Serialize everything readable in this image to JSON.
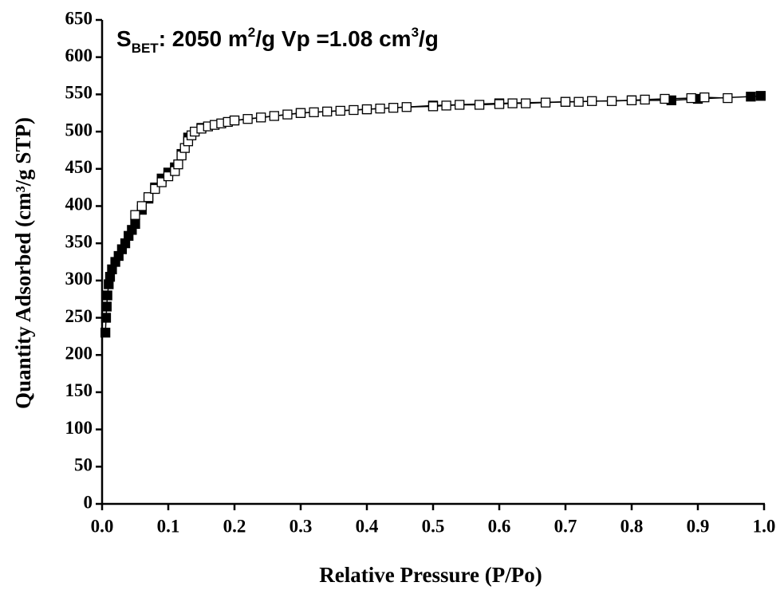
{
  "chart_data": {
    "type": "scatter",
    "annotation": [
      "S",
      "BET",
      ": 2050 m",
      "2",
      "/g  Vp =1.08 cm",
      "3",
      "/g"
    ],
    "x_label": "Relative Pressure (P/Po)",
    "y_label": "Quantity Adsorbed (cm³/g STP)",
    "xlim": [
      0,
      1.0
    ],
    "xticks": [
      {
        "value": 0,
        "label": "0.0"
      },
      0.1,
      0.2,
      0.3,
      0.4,
      0.5,
      0.6,
      0.7,
      0.8,
      0.9,
      {
        "value": 1,
        "label": "1.0"
      }
    ],
    "ylim": [
      0,
      650
    ],
    "yticks": [
      0,
      50,
      100,
      150,
      200,
      250,
      300,
      350,
      400,
      450,
      500,
      550,
      600,
      650
    ],
    "series": [
      {
        "color": "#000000",
        "filled": true,
        "x": [
          0.005,
          0.006,
          0.007,
          0.008,
          0.01,
          0.012,
          0.015,
          0.02,
          0.025,
          0.03,
          0.035,
          0.04,
          0.045,
          0.05,
          0.06,
          0.07,
          0.08,
          0.09,
          0.1,
          0.11,
          0.12,
          0.13,
          0.15,
          0.2,
          0.3,
          0.4,
          0.5,
          0.6,
          0.7,
          0.8,
          0.86,
          0.9,
          0.98,
          0.995
        ],
        "values": [
          230,
          250,
          265,
          280,
          295,
          305,
          315,
          325,
          333,
          342,
          350,
          360,
          368,
          376,
          395,
          410,
          425,
          437,
          445,
          452,
          470,
          492,
          505,
          515,
          525,
          530,
          535,
          538,
          540,
          542,
          542,
          544,
          547,
          548
        ]
      },
      {
        "color": "#000000",
        "filled": false,
        "x": [
          0.05,
          0.06,
          0.07,
          0.08,
          0.09,
          0.1,
          0.11,
          0.115,
          0.12,
          0.125,
          0.13,
          0.135,
          0.14,
          0.15,
          0.16,
          0.17,
          0.18,
          0.19,
          0.2,
          0.22,
          0.24,
          0.26,
          0.28,
          0.3,
          0.32,
          0.34,
          0.36,
          0.38,
          0.4,
          0.42,
          0.44,
          0.46,
          0.5,
          0.52,
          0.54,
          0.57,
          0.6,
          0.62,
          0.64,
          0.67,
          0.7,
          0.72,
          0.74,
          0.77,
          0.8,
          0.82,
          0.85,
          0.89,
          0.91,
          0.945
        ],
        "values": [
          388,
          400,
          412,
          423,
          432,
          440,
          447,
          456,
          468,
          478,
          487,
          495,
          500,
          504,
          507,
          509,
          511,
          513,
          515,
          517,
          519,
          521,
          523,
          525,
          526,
          527,
          528,
          529,
          530,
          531,
          532,
          533,
          534,
          535,
          536,
          536,
          537,
          538,
          538,
          539,
          540,
          540,
          541,
          541,
          542,
          543,
          544,
          545,
          546,
          545
        ]
      }
    ]
  }
}
